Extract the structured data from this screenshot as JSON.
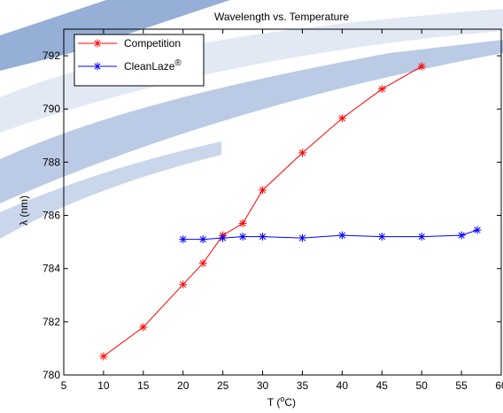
{
  "chart_data": {
    "type": "line",
    "title": "Wavelength vs. Temperature",
    "xlabel": "T (",
    "xlabel_sup": "o",
    "xlabel_tail": "C)",
    "ylabel": "λ (nm)",
    "xlim": [
      5,
      60
    ],
    "ylim": [
      780,
      793
    ],
    "xticks": [
      5,
      10,
      15,
      20,
      25,
      30,
      35,
      40,
      45,
      50,
      55,
      60
    ],
    "xtick_labels": [
      "5",
      "10",
      "15",
      "20",
      "25",
      "30",
      "35",
      "40",
      "45",
      "50",
      "55",
      "60"
    ],
    "yticks": [
      780,
      782,
      784,
      786,
      788,
      790,
      792
    ],
    "ytick_labels": [
      "780",
      "782",
      "784",
      "786",
      "788",
      "790",
      "792"
    ],
    "grid": false,
    "legend_position": "top-left",
    "series": [
      {
        "name": "Competition",
        "color": "#ff0000",
        "marker": "asterisk",
        "x": [
          10,
          15,
          20,
          22.5,
          25,
          27.5,
          30,
          35,
          40,
          45,
          50
        ],
        "y": [
          780.7,
          781.8,
          783.4,
          784.2,
          785.25,
          785.7,
          786.95,
          788.35,
          789.65,
          790.75,
          791.6
        ]
      },
      {
        "name": "CleanLaze",
        "name_sup": "®",
        "color": "#0000ff",
        "marker": "asterisk",
        "x": [
          20,
          22.5,
          25,
          27.5,
          30,
          35,
          40,
          45,
          50,
          55,
          57
        ],
        "y": [
          785.1,
          785.1,
          785.15,
          785.2,
          785.2,
          785.15,
          785.25,
          785.2,
          785.2,
          785.25,
          785.45
        ]
      }
    ]
  },
  "background": {
    "swoosh_color": "#7f9fce",
    "swoosh_light_color": "#dfe7f3"
  }
}
